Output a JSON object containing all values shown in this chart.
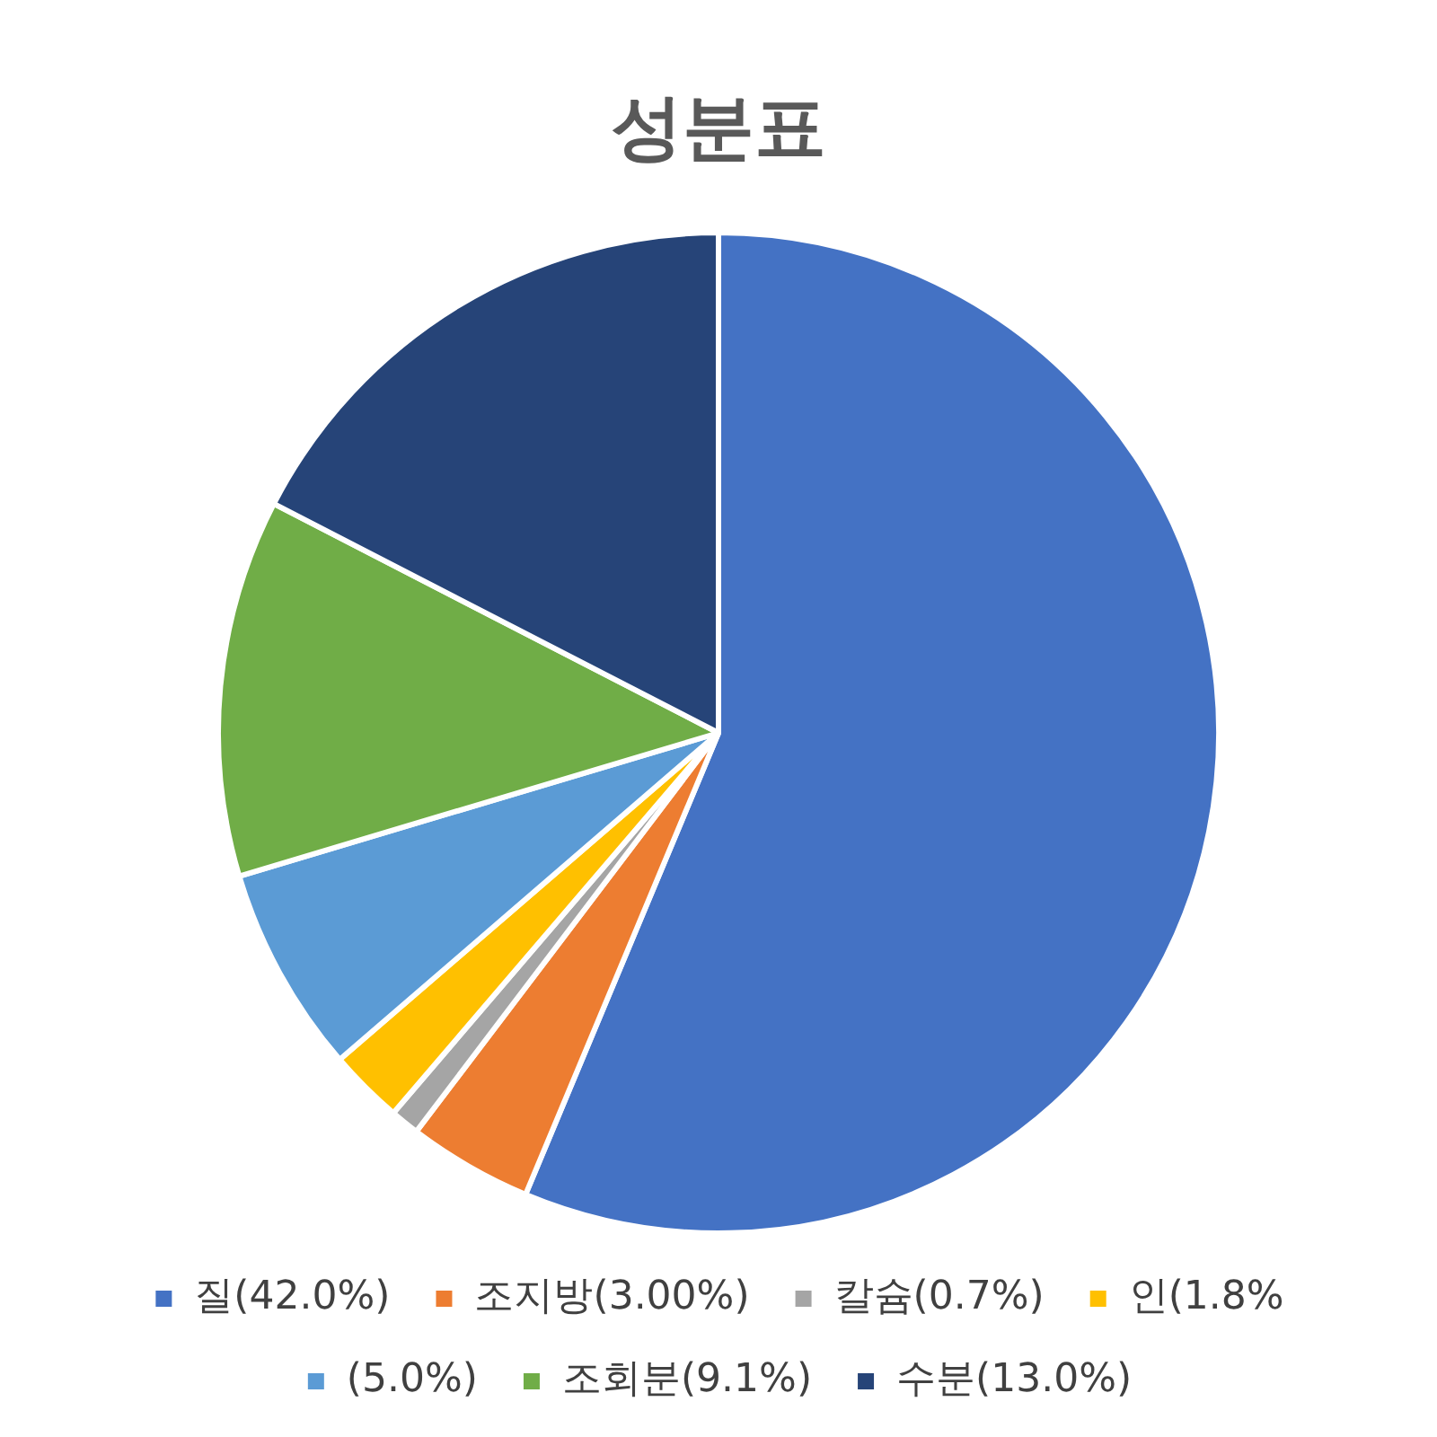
{
  "chart_data": {
    "type": "pie",
    "title": "성분표",
    "categories": [
      "질(42.0%)",
      "조지방(3.00%)",
      "칼슘(0.7%)",
      "인(1.8%",
      "(5.0%)",
      "조회분(9.1%)",
      "수분(13.0%)"
    ],
    "values": [
      42.0,
      3.0,
      0.7,
      1.8,
      5.0,
      9.1,
      13.0
    ],
    "colors": [
      "#4472c4",
      "#ed7d31",
      "#a5a5a5",
      "#ffc000",
      "#5b9bd5",
      "#70ad47",
      "#264478"
    ],
    "legend": "bottom"
  }
}
